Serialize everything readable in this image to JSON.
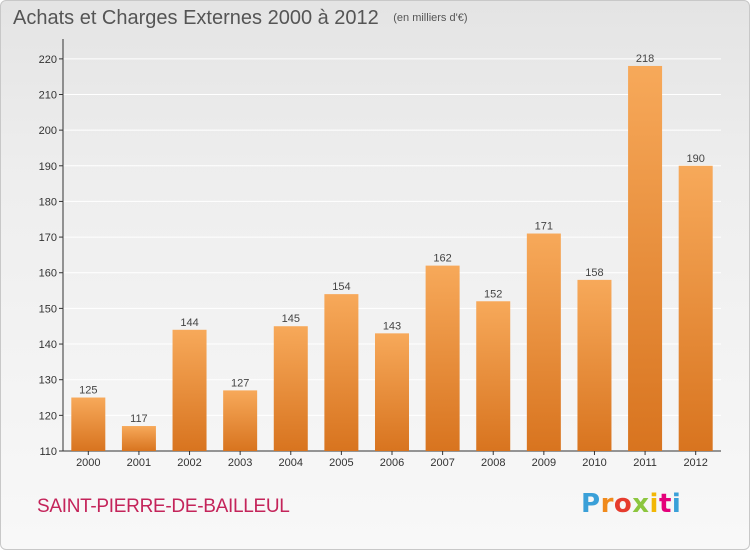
{
  "title": "Achats et Charges Externes 2000 à 2012",
  "subtitle": "(en milliers d'€)",
  "location": "SAINT-PIERRE-DE-BAILLEUL",
  "brand": {
    "letters": [
      "P",
      "r",
      "o",
      "x",
      "i",
      "t",
      "i"
    ],
    "colors": [
      "#3aa0d8",
      "#f08a1c",
      "#e63c2e",
      "#8cc63f",
      "#f2b705",
      "#e4007a",
      "#3aa0d8"
    ]
  },
  "colors": {
    "bar_light": "#f7a95a",
    "bar_dark": "#d8741f",
    "grid": "#ffffff",
    "axis": "#333333"
  },
  "chart_data": {
    "type": "bar",
    "categories": [
      "2000",
      "2001",
      "2002",
      "2003",
      "2004",
      "2005",
      "2006",
      "2007",
      "2008",
      "2009",
      "2010",
      "2011",
      "2012"
    ],
    "values": [
      125,
      117,
      144,
      127,
      145,
      154,
      143,
      162,
      152,
      171,
      158,
      218,
      190
    ],
    "value_labels": [
      "125",
      "117",
      "144",
      "127",
      "145",
      "154",
      "143",
      "162",
      "152",
      "171",
      "158",
      "218",
      "190"
    ],
    "yticks": [
      "110",
      "120",
      "130",
      "140",
      "150",
      "160",
      "170",
      "180",
      "190",
      "200",
      "210",
      "220"
    ],
    "ylim": [
      110,
      225
    ],
    "grid": true,
    "legend": "none"
  }
}
